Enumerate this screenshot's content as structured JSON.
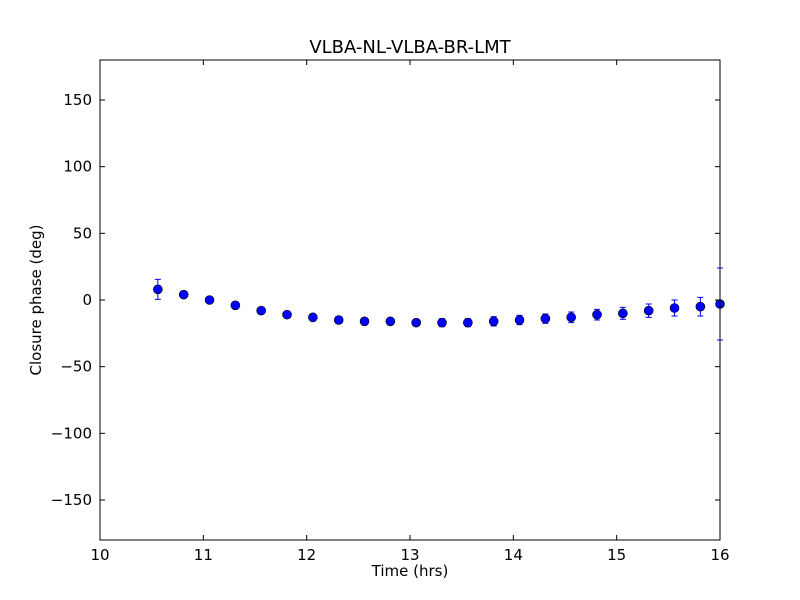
{
  "chart_data": {
    "type": "scatter",
    "title": "VLBA-NL-VLBA-BR-LMT",
    "xlabel": "Time (hrs)",
    "ylabel": "Closure phase (deg)",
    "xlim": [
      10,
      16
    ],
    "ylim": [
      -180,
      180
    ],
    "xticks": [
      10,
      11,
      12,
      13,
      14,
      15,
      16
    ],
    "yticks": [
      -150,
      -100,
      -50,
      0,
      50,
      100,
      150
    ],
    "xtick_labels": [
      "10",
      "11",
      "12",
      "13",
      "14",
      "15",
      "16"
    ],
    "ytick_labels": [
      "−150",
      "−100",
      "−50",
      "0",
      "50",
      "100",
      "150"
    ],
    "grid": false,
    "marker_color": "#0000ff",
    "errorbar_color": "#0000ff",
    "series": [
      {
        "points": [
          {
            "x": 10.56,
            "y": 8,
            "err": 7.5
          },
          {
            "x": 10.81,
            "y": 4,
            "err": 2.5
          },
          {
            "x": 11.06,
            "y": 0,
            "err": 2
          },
          {
            "x": 11.31,
            "y": -4,
            "err": 2.5
          },
          {
            "x": 11.56,
            "y": -8,
            "err": 2
          },
          {
            "x": 11.81,
            "y": -11,
            "err": 2
          },
          {
            "x": 12.06,
            "y": -13,
            "err": 2.5
          },
          {
            "x": 12.31,
            "y": -15,
            "err": 2.5
          },
          {
            "x": 12.56,
            "y": -16,
            "err": 2.5
          },
          {
            "x": 12.81,
            "y": -16,
            "err": 2.5
          },
          {
            "x": 13.06,
            "y": -17,
            "err": 2.5
          },
          {
            "x": 13.31,
            "y": -17,
            "err": 3
          },
          {
            "x": 13.56,
            "y": -17,
            "err": 3
          },
          {
            "x": 13.81,
            "y": -16,
            "err": 3.5
          },
          {
            "x": 14.06,
            "y": -15,
            "err": 3.5
          },
          {
            "x": 14.31,
            "y": -14,
            "err": 3.5
          },
          {
            "x": 14.56,
            "y": -13,
            "err": 4
          },
          {
            "x": 14.81,
            "y": -11,
            "err": 4
          },
          {
            "x": 15.06,
            "y": -10,
            "err": 4.5
          },
          {
            "x": 15.31,
            "y": -8,
            "err": 5
          },
          {
            "x": 15.56,
            "y": -6,
            "err": 6
          },
          {
            "x": 15.81,
            "y": -5,
            "err": 7
          },
          {
            "x": 16.0,
            "y": -3,
            "err": 27
          }
        ]
      }
    ]
  }
}
